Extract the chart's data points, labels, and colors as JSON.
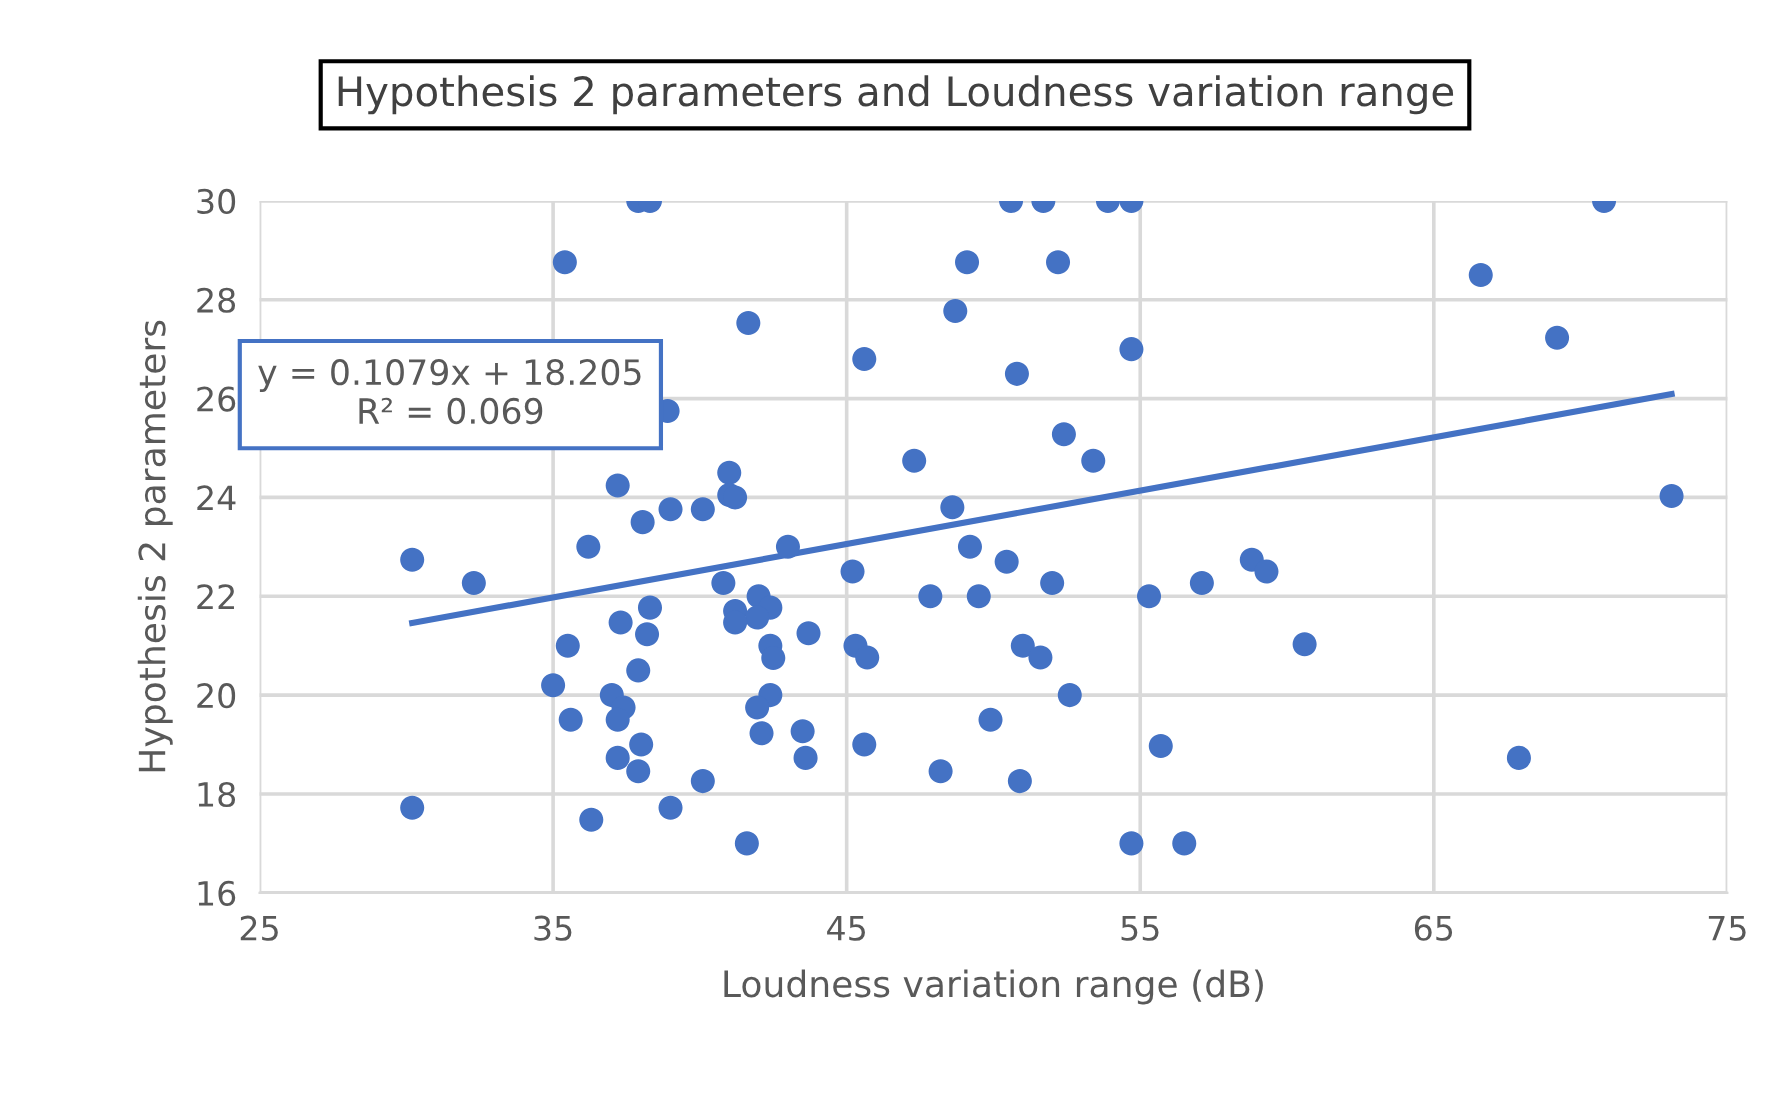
{
  "chart_data": {
    "type": "scatter",
    "title": "Hypothesis 2 parameters and Loudness variation range",
    "xlabel": "Loudness variation range (dB)",
    "ylabel": "Hypothesis 2 parameters",
    "annotations": [
      "y = 0.1079x + 18.205",
      "R² = 0.069"
    ],
    "series": [
      {
        "color": "#4472c4",
        "marker": "circle",
        "x": [
          37.9,
          38.3,
          35.4,
          41.65,
          45.6,
          38.9,
          41.0,
          37.2,
          41.0,
          41.2,
          40.1,
          39.0,
          38.05,
          36.2,
          43.0,
          45.2,
          30.2,
          32.3,
          40.8,
          42.0,
          42.4,
          41.2,
          41.95,
          41.2,
          38.3,
          37.3,
          38.2,
          35.5,
          43.7,
          42.4,
          42.5,
          45.3,
          45.7,
          35.0,
          37.9,
          37.0,
          37.4,
          37.2,
          35.6,
          42.4,
          41.95,
          42.1,
          43.5,
          43.6,
          38.0,
          37.2,
          37.9,
          45.6,
          40.1,
          30.2,
          39.0,
          36.3,
          41.6,
          50.6,
          51.7,
          53.9,
          54.7,
          49.1,
          52.2,
          48.7,
          50.8,
          54.7,
          52.4,
          53.4,
          47.3,
          48.6,
          49.2,
          50.45,
          52.0,
          47.85,
          49.5,
          55.3,
          57.1,
          51.0,
          51.6,
          52.6,
          49.9,
          55.7,
          48.2,
          50.9,
          54.7,
          56.5,
          70.8,
          66.6,
          69.2,
          73.1,
          58.8,
          59.3,
          60.6,
          67.9
        ],
        "values": [
          30,
          30,
          28.76,
          27.53,
          26.8,
          25.75,
          24.5,
          24.24,
          24.05,
          24.0,
          23.76,
          23.76,
          23.5,
          23.0,
          23.0,
          22.5,
          22.74,
          22.27,
          22.27,
          22.0,
          21.77,
          21.7,
          21.57,
          21.47,
          21.77,
          21.47,
          21.23,
          21.0,
          21.25,
          21.0,
          20.75,
          21.0,
          20.76,
          20.2,
          20.5,
          20.0,
          19.75,
          19.5,
          19.5,
          20.0,
          19.75,
          19.23,
          19.27,
          18.73,
          19.0,
          18.73,
          18.46,
          19.0,
          18.26,
          17.72,
          17.72,
          17.48,
          17.0,
          30,
          30,
          30,
          30,
          28.76,
          28.76,
          27.77,
          26.5,
          27.0,
          25.28,
          24.74,
          24.74,
          23.8,
          23.0,
          22.7,
          22.27,
          22.0,
          22.0,
          22.0,
          22.27,
          21.0,
          20.76,
          20.0,
          19.5,
          18.97,
          18.46,
          18.26,
          17.0,
          17.0,
          30,
          28.5,
          27.23,
          24.03,
          22.74,
          22.5,
          21.03,
          18.73
        ]
      },
      {
        "type": "line",
        "color": "#4472c4",
        "line_style": "solid",
        "x": [
          30.2,
          73.1
        ],
        "values": [
          21.46,
          26.09
        ]
      }
    ],
    "xlim": [
      25,
      75
    ],
    "xticks": [
      25,
      35,
      45,
      55,
      65,
      75
    ],
    "ylim": [
      16,
      30
    ],
    "yticks": [
      16,
      18,
      20,
      22,
      24,
      26,
      28,
      30
    ],
    "grid": true,
    "legend": false
  }
}
